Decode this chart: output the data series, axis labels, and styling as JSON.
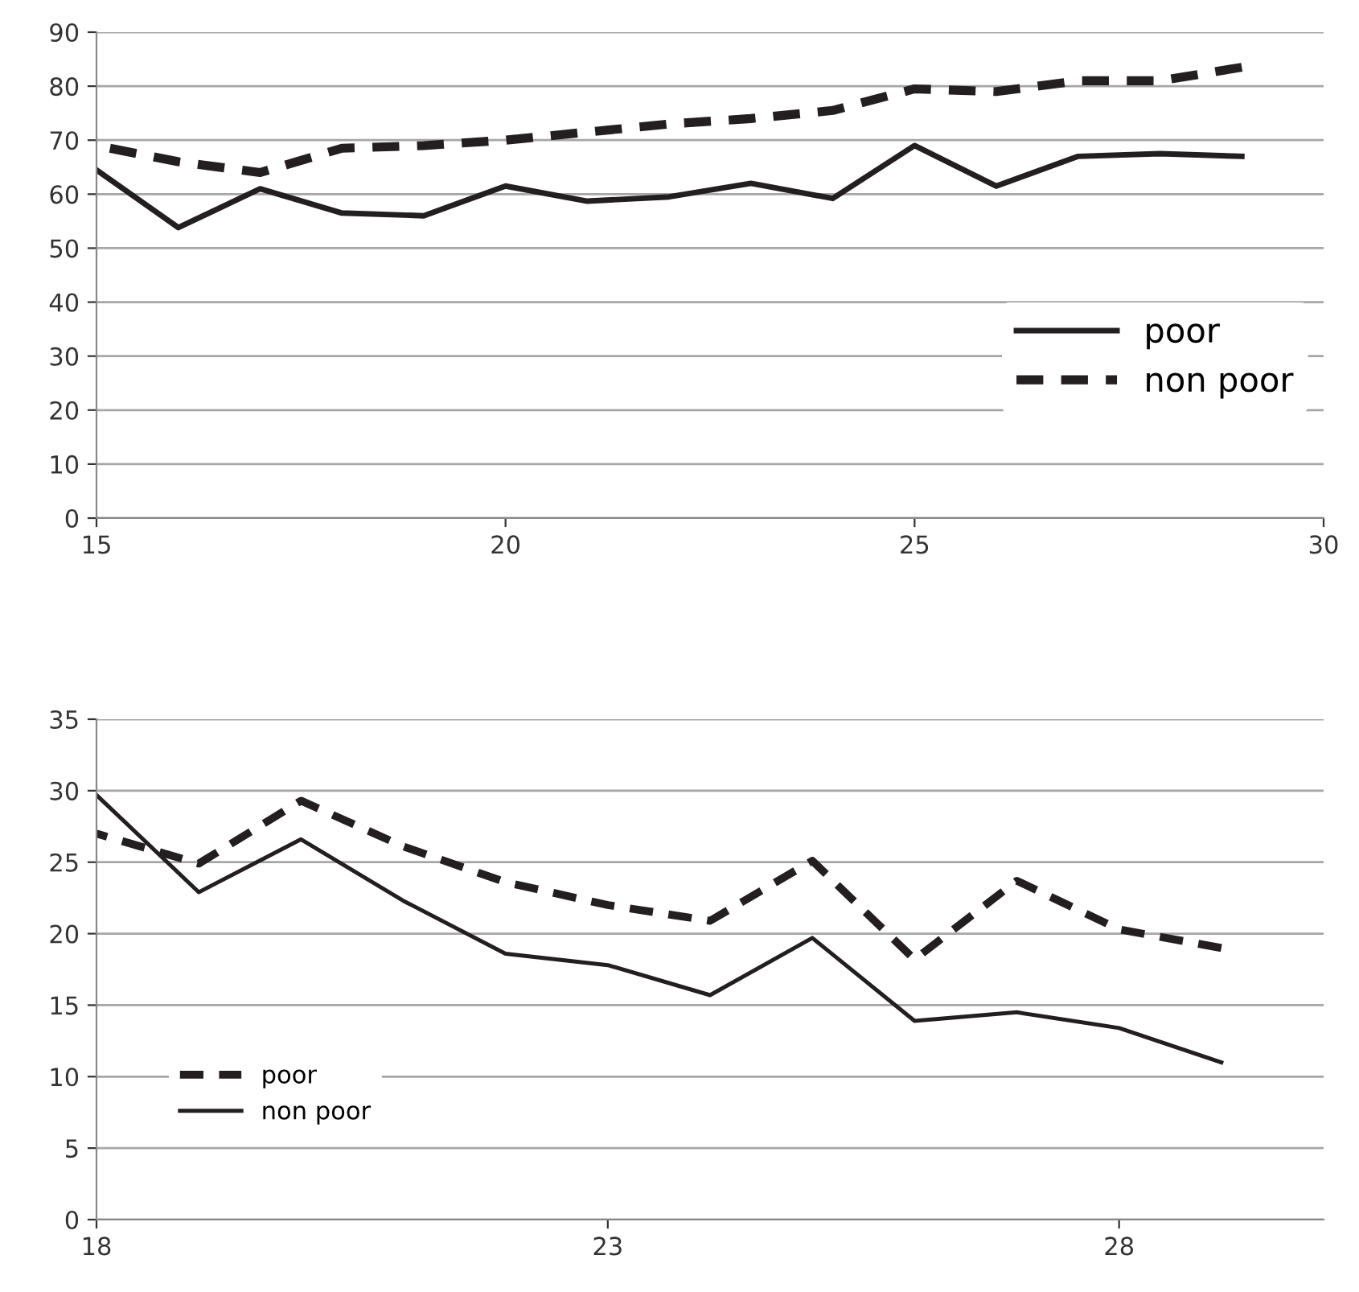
{
  "chart_data": [
    {
      "type": "line",
      "x": [
        15,
        16,
        17,
        18,
        19,
        20,
        21,
        22,
        23,
        24,
        25,
        26,
        27,
        28,
        29
      ],
      "xlim": [
        15,
        30
      ],
      "xticks": [
        15,
        20,
        25,
        30
      ],
      "ylim": [
        0,
        90
      ],
      "yticks": [
        0,
        10,
        20,
        30,
        40,
        50,
        60,
        70,
        80,
        90
      ],
      "grid": "y",
      "legend": "right",
      "marker": "none",
      "series": [
        {
          "name": "poor",
          "color": "#231f20",
          "line_style": "solid",
          "values": [
            64.5,
            53.8,
            61,
            56.5,
            56,
            61.5,
            58.7,
            59.5,
            62,
            59.2,
            69,
            61.5,
            67,
            67.5,
            67
          ]
        },
        {
          "name": "non poor",
          "color": "#231f20",
          "line_style": "dashed",
          "values": [
            69,
            66,
            64,
            68.5,
            69,
            70,
            71.5,
            73,
            74,
            75.5,
            79.5,
            79,
            81,
            81,
            83.5
          ]
        }
      ]
    },
    {
      "type": "line",
      "x": [
        18,
        19,
        20,
        21,
        22,
        23,
        24,
        25,
        26,
        27,
        28,
        29
      ],
      "xlim": [
        18,
        30
      ],
      "xticks": [
        18,
        23,
        28
      ],
      "ylim": [
        0,
        35
      ],
      "yticks": [
        0,
        5,
        10,
        15,
        20,
        25,
        30,
        35
      ],
      "grid": "y",
      "legend": "left",
      "marker": "none",
      "series": [
        {
          "name": "poor",
          "color": "#231f20",
          "line_style": "dashed",
          "values": [
            27,
            24.9,
            29.3,
            26.1,
            23.6,
            22,
            20.9,
            25.1,
            18.2,
            23.7,
            20.3,
            19
          ]
        },
        {
          "name": "non poor",
          "color": "#231f20",
          "line_style": "solid",
          "values": [
            29.7,
            22.9,
            26.6,
            22.3,
            18.6,
            17.8,
            15.7,
            19.7,
            13.9,
            14.5,
            13.4,
            11
          ]
        }
      ]
    }
  ]
}
